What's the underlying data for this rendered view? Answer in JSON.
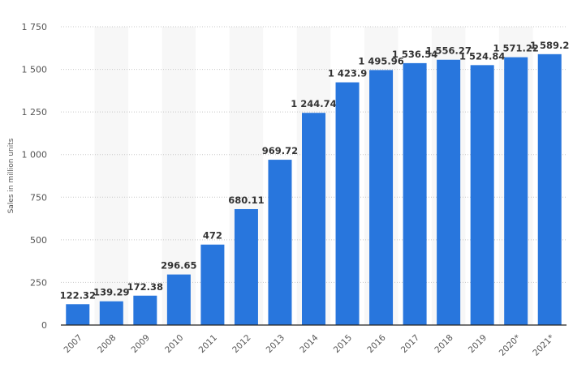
{
  "chart_data": {
    "type": "bar",
    "title": "",
    "xlabel": "",
    "ylabel": "Sales in million units",
    "ylim": [
      0,
      1750
    ],
    "yticks": [
      0,
      250,
      500,
      750,
      1000,
      1250,
      1500,
      1750
    ],
    "ytick_labels": [
      "0",
      "250",
      "500",
      "750",
      "1 000",
      "1 250",
      "1 500",
      "1 750"
    ],
    "grid": true,
    "categories": [
      "2007",
      "2008",
      "2009",
      "2010",
      "2011",
      "2012",
      "2013",
      "2014",
      "2015",
      "2016",
      "2017",
      "2018",
      "2019",
      "2020*",
      "2021*"
    ],
    "values": [
      122.32,
      139.29,
      172.38,
      296.65,
      472,
      680.11,
      969.72,
      1244.74,
      1423.9,
      1495.96,
      1536.54,
      1556.27,
      1524.84,
      1571.22,
      1589.2
    ],
    "value_labels": [
      "122.32",
      "139.29",
      "172.38",
      "296.65",
      "472",
      "680.11",
      "969.72",
      "1 244.74",
      "1 423.9",
      "1 495.96",
      "1 536.54",
      "1 556.27",
      "1 524.84",
      "1 571.22",
      "1 589.2"
    ],
    "bar_color": "#2876dd"
  }
}
